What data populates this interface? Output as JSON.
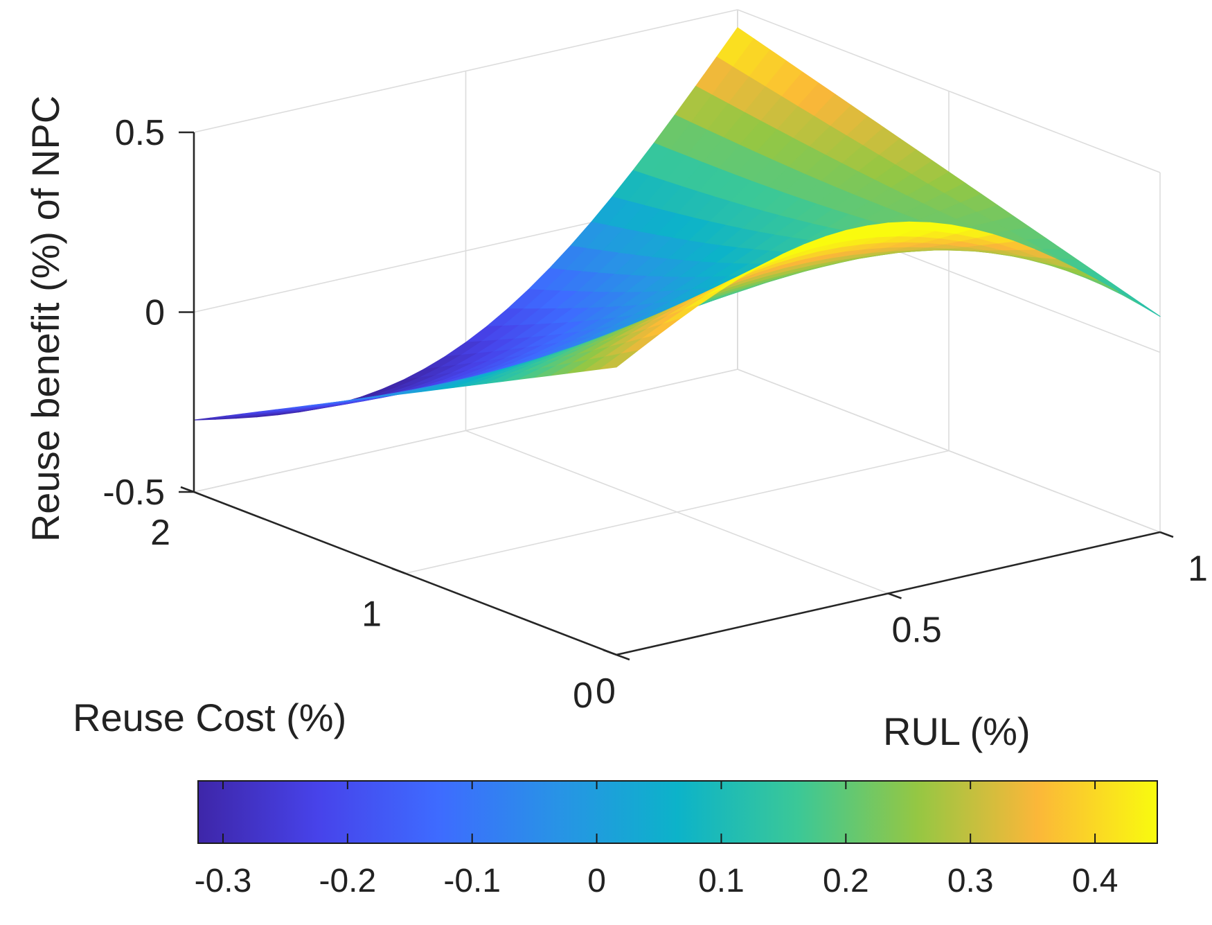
{
  "chart_data": {
    "type": "surface3d",
    "title": "",
    "xlabel": "RUL (%)",
    "ylabel": "Reuse Cost (%)",
    "zlabel": "Reuse benefit (%) of NPC",
    "xlim": [
      0,
      1
    ],
    "ylim": [
      0,
      2
    ],
    "zlim": [
      -0.5,
      0.5
    ],
    "x_ticks": [
      0,
      0.5,
      1
    ],
    "x_tick_labels": [
      "0",
      "0.5",
      "1"
    ],
    "y_ticks": [
      0,
      1,
      2
    ],
    "y_tick_labels": [
      "0",
      "1",
      "2"
    ],
    "z_ticks": [
      -0.5,
      0,
      0.5
    ],
    "z_tick_labels": [
      "-0.5",
      "0",
      "0.5"
    ],
    "grid": true,
    "box": true,
    "colormap": "parula",
    "colorbar": {
      "location": "south",
      "range": [
        -0.32,
        0.45
      ],
      "ticks": [
        -0.3,
        -0.2,
        -0.1,
        0,
        0.1,
        0.2,
        0.3,
        0.4
      ],
      "tick_labels": [
        "-0.3",
        "-0.2",
        "-0.1",
        "0",
        "0.1",
        "0.2",
        "0.3",
        "0.4"
      ]
    },
    "surface_corner_values": {
      "rul_0_cost_0": 0.3,
      "rul_1_cost_0": 0.1,
      "rul_1_cost_2": 0.45,
      "rul_0_cost_2": -0.3,
      "min_value": -0.32,
      "max_value": 0.45
    }
  }
}
